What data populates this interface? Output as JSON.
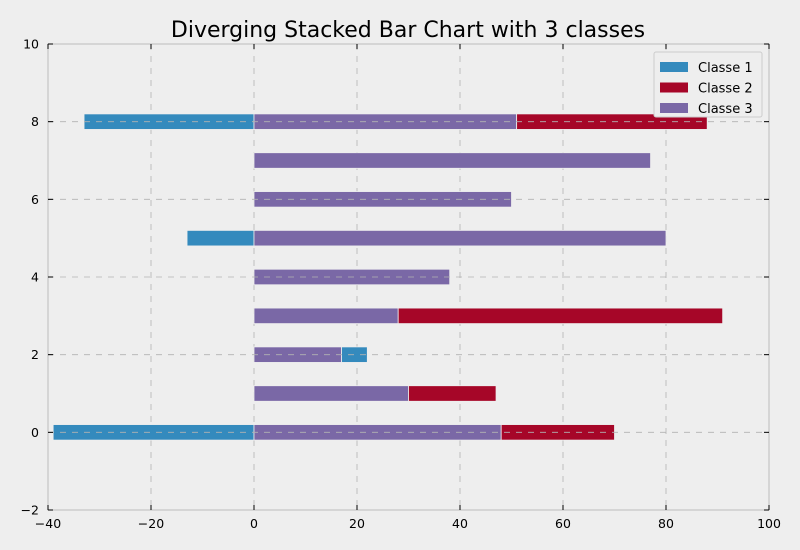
{
  "chart_data": {
    "type": "bar",
    "orientation": "horizontal",
    "stacking": "diverging",
    "title": "Diverging Stacked Bar Chart with 3 classes",
    "xlabel": "",
    "ylabel": "",
    "xlim": [
      -40,
      100
    ],
    "ylim": [
      -2,
      10
    ],
    "xticks": [
      -40,
      -20,
      0,
      20,
      40,
      60,
      80,
      100
    ],
    "yticks": [
      -2,
      0,
      2,
      4,
      6,
      8,
      10
    ],
    "grid": true,
    "legend_position": "top-right",
    "categories": [
      0,
      1,
      2,
      3,
      4,
      5,
      6,
      7,
      8
    ],
    "series": [
      {
        "name": "Classe 1",
        "color": "#348ABD",
        "values": [
          -39,
          0,
          5,
          0,
          0,
          -13,
          0,
          0,
          -33
        ]
      },
      {
        "name": "Classe 2",
        "color": "#A60628",
        "values": [
          22,
          17,
          0,
          63,
          0,
          0,
          0,
          0,
          37
        ]
      },
      {
        "name": "Classe 3",
        "color": "#7A68A6",
        "values": [
          48,
          30,
          17,
          28,
          38,
          80,
          50,
          77,
          51
        ]
      }
    ],
    "segments": [
      {
        "y": 0,
        "series": "Classe 1",
        "from": -39,
        "to": 0
      },
      {
        "y": 0,
        "series": "Classe 3",
        "from": 0,
        "to": 48
      },
      {
        "y": 0,
        "series": "Classe 2",
        "from": 48,
        "to": 70
      },
      {
        "y": 1,
        "series": "Classe 3",
        "from": 0,
        "to": 30
      },
      {
        "y": 1,
        "series": "Classe 2",
        "from": 30,
        "to": 47
      },
      {
        "y": 2,
        "series": "Classe 3",
        "from": 0,
        "to": 17
      },
      {
        "y": 2,
        "series": "Classe 1",
        "from": 17,
        "to": 22
      },
      {
        "y": 3,
        "series": "Classe 3",
        "from": 0,
        "to": 28
      },
      {
        "y": 3,
        "series": "Classe 2",
        "from": 28,
        "to": 91
      },
      {
        "y": 4,
        "series": "Classe 3",
        "from": 0,
        "to": 38
      },
      {
        "y": 5,
        "series": "Classe 1",
        "from": -13,
        "to": 0
      },
      {
        "y": 5,
        "series": "Classe 3",
        "from": 0,
        "to": 80
      },
      {
        "y": 6,
        "series": "Classe 3",
        "from": 0,
        "to": 50
      },
      {
        "y": 7,
        "series": "Classe 3",
        "from": 0,
        "to": 77
      },
      {
        "y": 8,
        "series": "Classe 1",
        "from": -33,
        "to": 0
      },
      {
        "y": 8,
        "series": "Classe 3",
        "from": 0,
        "to": 51
      },
      {
        "y": 8,
        "series": "Classe 2",
        "from": 51,
        "to": 88
      }
    ],
    "bar_height": 0.4,
    "background_color": "#EEEEEE",
    "grid_color": "#B2B2B2"
  }
}
